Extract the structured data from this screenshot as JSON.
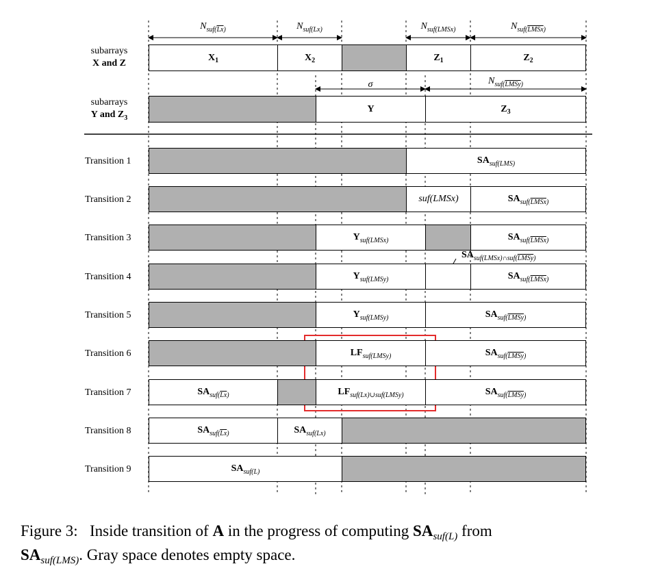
{
  "header_labels": {
    "n1": {
      "main": "N",
      "sub": "suf(",
      "ov": "Lx",
      "close": ")"
    },
    "n2": {
      "main": "N",
      "sub": "suf(Lx)"
    },
    "n3": {
      "main": "N",
      "sub": "suf(LMSx)"
    },
    "n4": {
      "main": "N",
      "sub": "suf(",
      "ov": "LMSx",
      "close": ")"
    },
    "sigma": "σ",
    "n5": {
      "main": "N",
      "sub": "suf(",
      "ov": "LMSy",
      "close": ")"
    }
  },
  "rows": {
    "xz_label_1": "subarrays",
    "xz_label_2": "X and Z",
    "yz_label_1": "subarrays",
    "yz_label_2": "Y and Z",
    "yz_label_3": "3",
    "x1": "X",
    "x1s": "1",
    "x2": "X",
    "x2s": "2",
    "z1": "Z",
    "z1s": "1",
    "z2": "Z",
    "z2s": "2",
    "y": "Y",
    "z3": "Z",
    "z3s": "3"
  },
  "transitions": [
    "Transition 1",
    "Transition 2",
    "Transition 3",
    "Transition 4",
    "Transition 5",
    "Transition 6",
    "Transition 7",
    "Transition 8",
    "Transition 9"
  ],
  "cells": {
    "sa": "SA",
    "y": "Y",
    "lf": "LF",
    "t1": "suf(LMS)",
    "t2a": "suf(LMSx)",
    "t2b_pre": "suf(",
    "t2b_ov": "LMSx",
    "close": ")",
    "t3a": "suf(LMSx)",
    "annot_pre": "suf(LMSx)∩suf(",
    "annot_ov": "LMSy",
    "t4a": "suf(LMSy)",
    "t5a": "suf(LMSy)",
    "ov_lmsy": "LMSy",
    "t6a": "suf(LMSy)",
    "ov_lx": "Lx",
    "t7b": "suf(Lx)∪suf(LMSy)",
    "t8b": "suf(Lx)",
    "t9": "suf(L)"
  },
  "caption": {
    "label": "Figure 3:",
    "text1": "Inside transition of",
    "A": "A",
    "text2": "in the progress of computing",
    "sa": "SA",
    "sub1": "suf(L)",
    "text3": "from",
    "sub2": "suf(LMS)",
    "text4": ". Gray space denotes empty space."
  },
  "colors": {
    "empty": "#b0b0b0",
    "highlight": "#e32b2b"
  }
}
